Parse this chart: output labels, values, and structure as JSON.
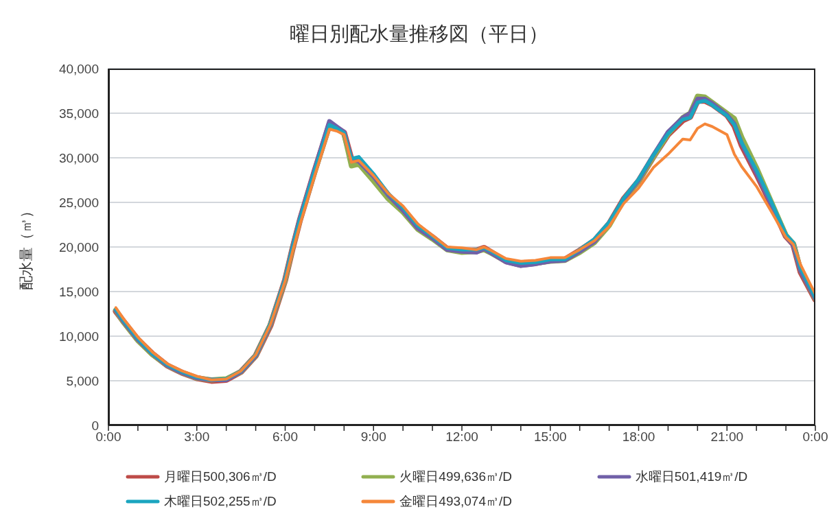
{
  "chart_data": {
    "type": "line",
    "title": "曜日別配水量推移図（平日）",
    "ylabel": "配水量（㎥）",
    "x": [
      0.25,
      0.5,
      1,
      1.5,
      2,
      2.5,
      3,
      3.5,
      4,
      4.5,
      5,
      5.5,
      6,
      6.25,
      6.5,
      7,
      7.5,
      7.75,
      8,
      8.25,
      8.5,
      9,
      9.5,
      10,
      10.5,
      11,
      11.5,
      12,
      12.5,
      12.75,
      13,
      13.5,
      14,
      14.5,
      15,
      15.5,
      16,
      16.5,
      17,
      17.5,
      18,
      18.5,
      19,
      19.5,
      19.75,
      20,
      20.25,
      20.5,
      21,
      21.25,
      21.5,
      22,
      22.5,
      23,
      23.25,
      23.5,
      24
    ],
    "series": [
      {
        "name": "月曜日500,306㎥/D",
        "color": "#be4b48",
        "values": [
          12800,
          11700,
          9600,
          8000,
          6700,
          5900,
          5300,
          5000,
          5100,
          6000,
          7800,
          11200,
          16300,
          19800,
          23000,
          28500,
          33700,
          33300,
          32800,
          29800,
          29600,
          27800,
          25800,
          24200,
          22300,
          21100,
          19800,
          19600,
          19600,
          19900,
          19400,
          18400,
          18000,
          18200,
          18500,
          18600,
          19600,
          20700,
          22600,
          25400,
          27400,
          30100,
          32600,
          34200,
          34600,
          36400,
          36400,
          36000,
          34800,
          33600,
          31400,
          28200,
          24800,
          21200,
          20300,
          17200,
          14100
        ]
      },
      {
        "name": "火曜日499,636㎥/D",
        "color": "#92b050",
        "values": [
          12900,
          11600,
          9500,
          7900,
          6700,
          5900,
          5300,
          5100,
          5200,
          6000,
          7800,
          11300,
          16300,
          19900,
          23000,
          28400,
          33600,
          33300,
          32700,
          29100,
          29300,
          27400,
          25400,
          23900,
          22000,
          20900,
          19700,
          19400,
          19500,
          19700,
          19300,
          18400,
          18100,
          18200,
          18400,
          18500,
          19400,
          20500,
          22400,
          25300,
          27400,
          30100,
          32700,
          34500,
          35000,
          36900,
          36800,
          36200,
          35000,
          34400,
          32300,
          28900,
          25100,
          21300,
          20400,
          17400,
          14200
        ]
      },
      {
        "name": "水曜日501,419㎥/D",
        "color": "#7060a8",
        "values": [
          12900,
          11700,
          9600,
          8000,
          6700,
          5900,
          5300,
          5100,
          5100,
          6000,
          7800,
          11300,
          16400,
          20000,
          23200,
          28700,
          34100,
          33500,
          32900,
          29800,
          29600,
          27900,
          25800,
          24100,
          22100,
          21000,
          19700,
          19500,
          19400,
          19800,
          19300,
          18300,
          17900,
          18100,
          18400,
          18500,
          19500,
          20600,
          22600,
          25400,
          27500,
          30300,
          32900,
          34500,
          35000,
          36600,
          36600,
          36100,
          34800,
          33800,
          31600,
          28300,
          24800,
          21200,
          20200,
          17300,
          14200
        ]
      },
      {
        "name": "木曜日502,255㎥/D",
        "color": "#1ba5bf",
        "values": [
          13000,
          11800,
          9700,
          8000,
          6800,
          6000,
          5400,
          5100,
          5200,
          6100,
          7900,
          11400,
          16400,
          19900,
          23100,
          28600,
          33700,
          33300,
          32800,
          29900,
          30100,
          28200,
          26000,
          24400,
          22400,
          21200,
          19900,
          19700,
          19700,
          19900,
          19500,
          18500,
          18200,
          18300,
          18600,
          18600,
          19700,
          20900,
          22800,
          25500,
          27600,
          30300,
          32700,
          34300,
          34500,
          36200,
          36400,
          35900,
          34700,
          33700,
          31700,
          28600,
          25100,
          21400,
          20500,
          17600,
          14300
        ]
      },
      {
        "name": "金曜日493,074㎥/D",
        "color": "#f5873a",
        "values": [
          13200,
          12000,
          9900,
          8200,
          6900,
          6100,
          5500,
          5100,
          5200,
          6100,
          7900,
          11300,
          16200,
          19500,
          22500,
          28000,
          33200,
          33000,
          32600,
          29500,
          29700,
          28000,
          26000,
          24600,
          22600,
          21300,
          20000,
          19900,
          19700,
          20000,
          19600,
          18700,
          18400,
          18500,
          18800,
          18800,
          19700,
          20700,
          22300,
          24900,
          26600,
          28900,
          30400,
          32100,
          32000,
          33300,
          33800,
          33500,
          32600,
          30400,
          29000,
          26800,
          24000,
          21100,
          20300,
          18000,
          14700
        ]
      }
    ],
    "xlim": [
      0,
      24
    ],
    "xticks": [
      {
        "value": 0,
        "label": "0:00"
      },
      {
        "value": 1,
        "label": null
      },
      {
        "value": 2,
        "label": null
      },
      {
        "value": 3,
        "label": "3:00"
      },
      {
        "value": 4,
        "label": null
      },
      {
        "value": 5,
        "label": null
      },
      {
        "value": 6,
        "label": "6:00"
      },
      {
        "value": 7,
        "label": null
      },
      {
        "value": 8,
        "label": null
      },
      {
        "value": 9,
        "label": "9:00"
      },
      {
        "value": 10,
        "label": null
      },
      {
        "value": 11,
        "label": null
      },
      {
        "value": 12,
        "label": "12:00"
      },
      {
        "value": 13,
        "label": null
      },
      {
        "value": 14,
        "label": null
      },
      {
        "value": 15,
        "label": "15:00"
      },
      {
        "value": 16,
        "label": null
      },
      {
        "value": 17,
        "label": null
      },
      {
        "value": 18,
        "label": "18:00"
      },
      {
        "value": 19,
        "label": null
      },
      {
        "value": 20,
        "label": null
      },
      {
        "value": 21,
        "label": "21:00"
      },
      {
        "value": 22,
        "label": null
      },
      {
        "value": 23,
        "label": null
      },
      {
        "value": 24,
        "label": "0:00"
      }
    ],
    "ylim": [
      0,
      40000
    ],
    "yticks": [
      {
        "value": 0,
        "label": "0"
      },
      {
        "value": 5000,
        "label": "5,000"
      },
      {
        "value": 10000,
        "label": "10,000"
      },
      {
        "value": 15000,
        "label": "15,000"
      },
      {
        "value": 20000,
        "label": "20,000"
      },
      {
        "value": 25000,
        "label": "25,000"
      },
      {
        "value": 30000,
        "label": "30,000"
      },
      {
        "value": 35000,
        "label": "35,000"
      },
      {
        "value": 40000,
        "label": "40,000"
      }
    ],
    "grid": "y",
    "legend": "bottom",
    "marker": "none",
    "line_style": "solid"
  }
}
